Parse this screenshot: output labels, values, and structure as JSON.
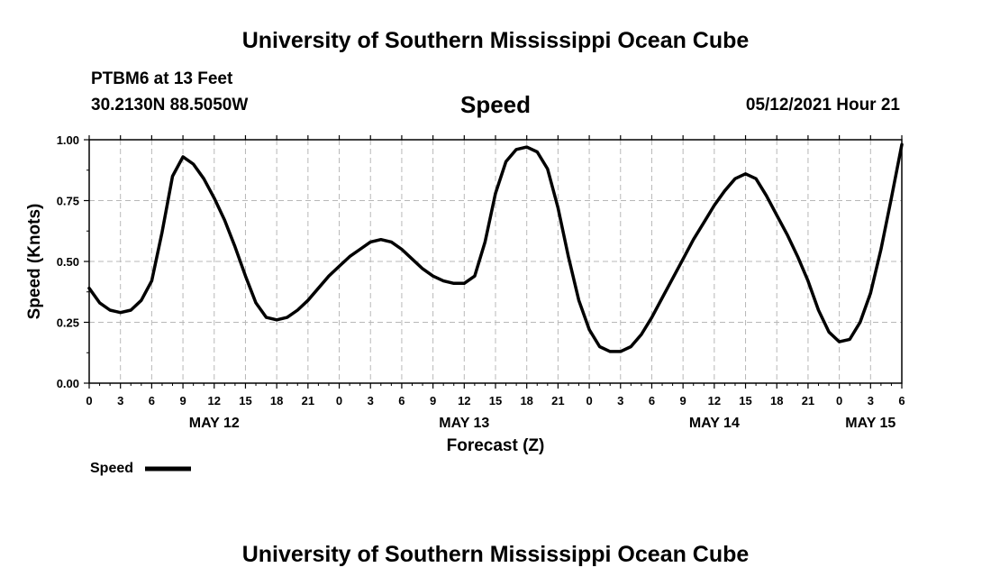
{
  "header": {
    "title": "University of Southern Mississippi Ocean Cube",
    "station": "PTBM6 at 13 Feet",
    "coords": "30.2130N  88.5050W",
    "timestamp": "05/12/2021 Hour 21"
  },
  "footer": {
    "title": "University of Southern Mississippi Ocean Cube"
  },
  "chart_data": {
    "type": "line",
    "title": "Speed",
    "xlabel": "Forecast (Z)",
    "ylabel": "Speed (Knots)",
    "xlim": [
      0,
      78
    ],
    "ylim": [
      0,
      1
    ],
    "grid": true,
    "yticks": [
      0,
      0.25,
      0.5,
      0.75,
      1.0
    ],
    "ytick_labels": [
      "0.00",
      "0.25",
      "0.50",
      "0.75",
      "1.00"
    ],
    "xticks": [
      0,
      3,
      6,
      9,
      12,
      15,
      18,
      21,
      24,
      27,
      30,
      33,
      36,
      39,
      42,
      45,
      48,
      51,
      54,
      57,
      60,
      63,
      66,
      69,
      72,
      75,
      78
    ],
    "xtick_labels": [
      "0",
      "3",
      "6",
      "9",
      "12",
      "15",
      "18",
      "21",
      "0",
      "3",
      "6",
      "9",
      "12",
      "15",
      "18",
      "21",
      "0",
      "3",
      "6",
      "9",
      "12",
      "15",
      "18",
      "21",
      "0",
      "3",
      "6"
    ],
    "date_labels": [
      {
        "label": "MAY 12",
        "x": 12
      },
      {
        "label": "MAY 13",
        "x": 36
      },
      {
        "label": "MAY 14",
        "x": 60
      },
      {
        "label": "MAY 15",
        "x": 75
      }
    ],
    "legend": {
      "label": "Speed",
      "position": "bottom-left"
    },
    "series": [
      {
        "name": "Speed",
        "x": [
          0,
          1,
          2,
          3,
          4,
          5,
          6,
          7,
          8,
          9,
          10,
          11,
          12,
          13,
          14,
          15,
          16,
          17,
          18,
          19,
          20,
          21,
          22,
          23,
          24,
          25,
          26,
          27,
          28,
          29,
          30,
          31,
          32,
          33,
          34,
          35,
          36,
          37,
          38,
          39,
          40,
          41,
          42,
          43,
          44,
          45,
          46,
          47,
          48,
          49,
          50,
          51,
          52,
          53,
          54,
          55,
          56,
          57,
          58,
          59,
          60,
          61,
          62,
          63,
          64,
          65,
          66,
          67,
          68,
          69,
          70,
          71,
          72,
          73,
          74,
          75,
          76,
          77,
          78
        ],
        "values": [
          0.39,
          0.33,
          0.3,
          0.29,
          0.3,
          0.34,
          0.42,
          0.62,
          0.85,
          0.93,
          0.9,
          0.84,
          0.76,
          0.67,
          0.56,
          0.44,
          0.33,
          0.27,
          0.26,
          0.27,
          0.3,
          0.34,
          0.39,
          0.44,
          0.48,
          0.52,
          0.55,
          0.58,
          0.59,
          0.58,
          0.55,
          0.51,
          0.47,
          0.44,
          0.42,
          0.41,
          0.41,
          0.44,
          0.58,
          0.78,
          0.91,
          0.96,
          0.97,
          0.95,
          0.88,
          0.72,
          0.52,
          0.34,
          0.22,
          0.15,
          0.13,
          0.13,
          0.15,
          0.2,
          0.27,
          0.35,
          0.43,
          0.51,
          0.59,
          0.66,
          0.73,
          0.79,
          0.84,
          0.86,
          0.84,
          0.77,
          0.69,
          0.61,
          0.52,
          0.42,
          0.3,
          0.21,
          0.17,
          0.18,
          0.25,
          0.37,
          0.55,
          0.76,
          0.98
        ]
      }
    ]
  }
}
